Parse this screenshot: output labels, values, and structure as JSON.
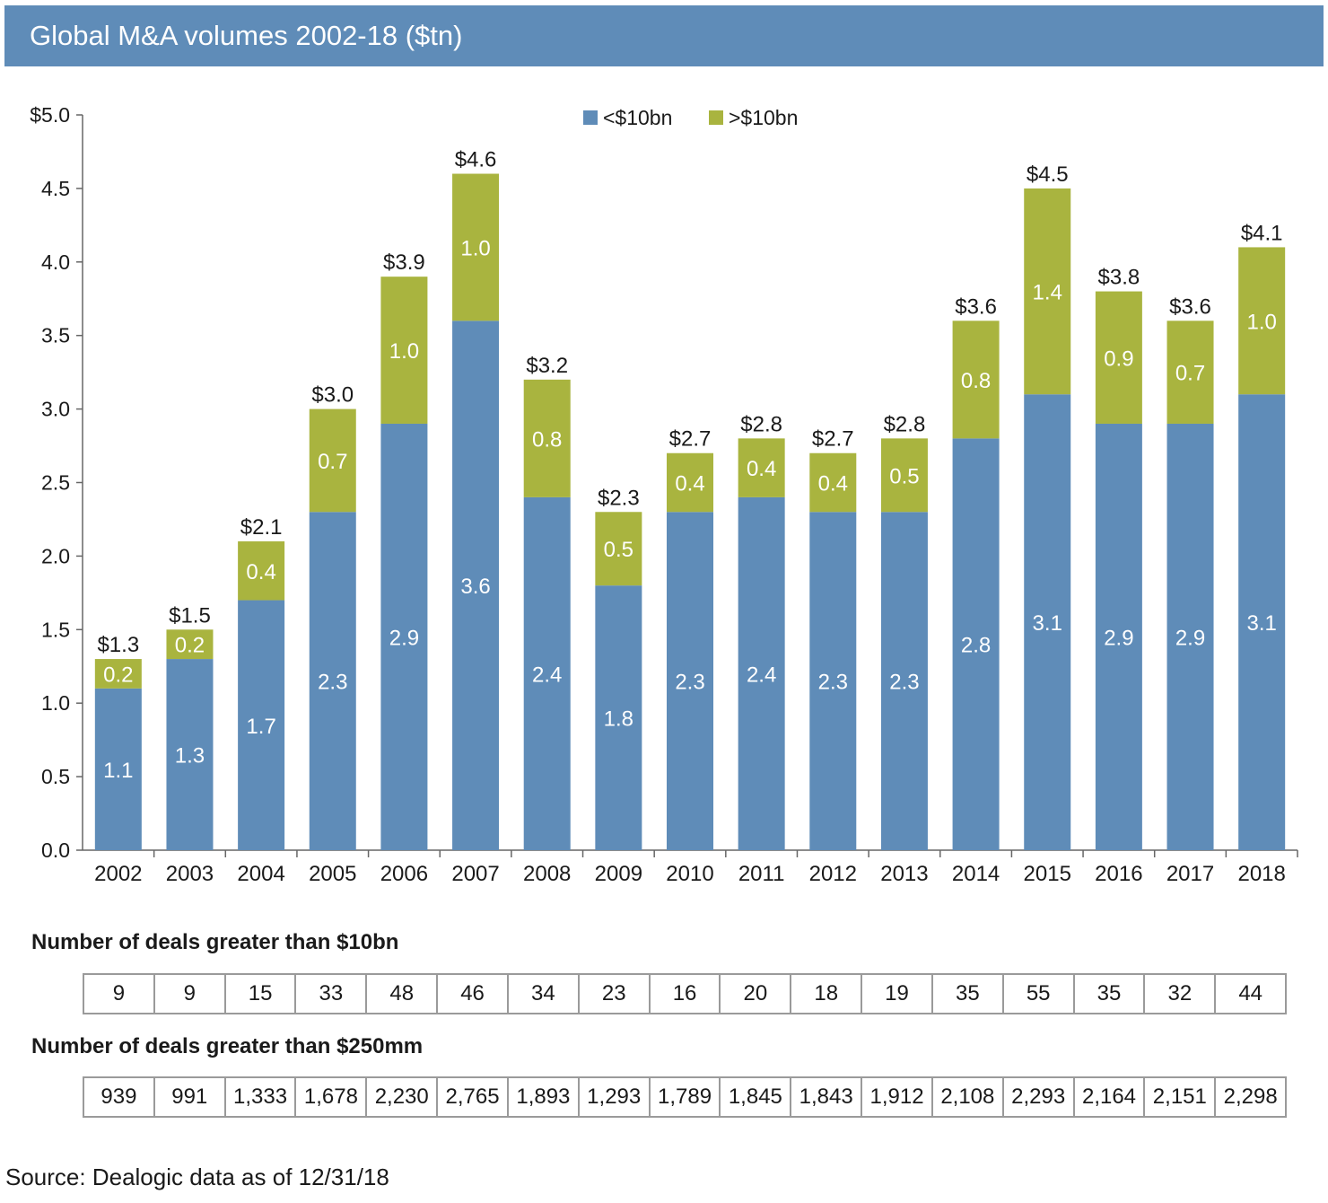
{
  "header": {
    "title": "Global M&A volumes 2002-18 ($tn)"
  },
  "chart_data": {
    "type": "bar",
    "stacked": true,
    "categories": [
      "2002",
      "2003",
      "2004",
      "2005",
      "2006",
      "2007",
      "2008",
      "2009",
      "2010",
      "2011",
      "2012",
      "2013",
      "2014",
      "2015",
      "2016",
      "2017",
      "2018"
    ],
    "series": [
      {
        "name": "<$10bn",
        "color": "#5f8cb8",
        "values": [
          1.1,
          1.3,
          1.7,
          2.3,
          2.9,
          3.6,
          2.4,
          1.8,
          2.3,
          2.4,
          2.3,
          2.3,
          2.8,
          3.1,
          2.9,
          2.9,
          3.1
        ],
        "labels": [
          "1.1",
          "1.3",
          "1.7",
          "2.3",
          "2.9",
          "3.6",
          "2.4",
          "1.8",
          "2.3",
          "2.4",
          "2.3",
          "2.3",
          "2.8",
          "3.1",
          "2.9",
          "2.9",
          "3.1"
        ]
      },
      {
        "name": ">$10bn",
        "color": "#a9b43f",
        "values": [
          0.2,
          0.2,
          0.4,
          0.7,
          1.0,
          1.0,
          0.8,
          0.5,
          0.4,
          0.4,
          0.4,
          0.5,
          0.8,
          1.4,
          0.9,
          0.7,
          1.0
        ],
        "labels": [
          "0.2",
          "0.2",
          "0.4",
          "0.7",
          "1.0",
          "1.0",
          "0.8",
          "0.5",
          "0.4",
          "0.4",
          "0.4",
          "0.5",
          "0.8",
          "1.4",
          "0.9",
          "0.7",
          "1.0"
        ]
      }
    ],
    "totals": [
      1.3,
      1.5,
      2.1,
      3.0,
      3.9,
      4.6,
      3.2,
      2.3,
      2.7,
      2.8,
      2.7,
      2.8,
      3.6,
      4.5,
      3.8,
      3.6,
      4.1
    ],
    "total_labels": [
      "$1.3",
      "$1.5",
      "$2.1",
      "$3.0",
      "$3.9",
      "$4.6",
      "$3.2",
      "$2.3",
      "$2.7",
      "$2.8",
      "$2.7",
      "$2.8",
      "$3.6",
      "$4.5",
      "$3.8",
      "$3.6",
      "$4.1"
    ],
    "ylim": [
      0,
      5.0
    ],
    "yticks": [
      0,
      0.5,
      1.0,
      1.5,
      2.0,
      2.5,
      3.0,
      3.5,
      4.0,
      4.5,
      5.0
    ],
    "ytick_labels": [
      "0.0",
      "0.5",
      "1.0",
      "1.5",
      "2.0",
      "2.5",
      "3.0",
      "3.5",
      "4.0",
      "4.5",
      "$5.0"
    ],
    "xlabel": "",
    "ylabel": "",
    "legend_position": "top-center",
    "grid": false
  },
  "deals_10bn": {
    "title": "Number of deals greater than $10bn",
    "values": [
      "9",
      "9",
      "15",
      "33",
      "48",
      "46",
      "34",
      "23",
      "16",
      "20",
      "18",
      "19",
      "35",
      "55",
      "35",
      "32",
      "44"
    ]
  },
  "deals_250mm": {
    "title": "Number of deals greater than $250mm",
    "values": [
      "939",
      "991",
      "1,333",
      "1,678",
      "2,230",
      "2,765",
      "1,893",
      "1,293",
      "1,789",
      "1,845",
      "1,843",
      "1,912",
      "2,108",
      "2,293",
      "2,164",
      "2,151",
      "2,298"
    ]
  },
  "footer": {
    "source": "Source: Dealogic data as of 12/31/18"
  }
}
